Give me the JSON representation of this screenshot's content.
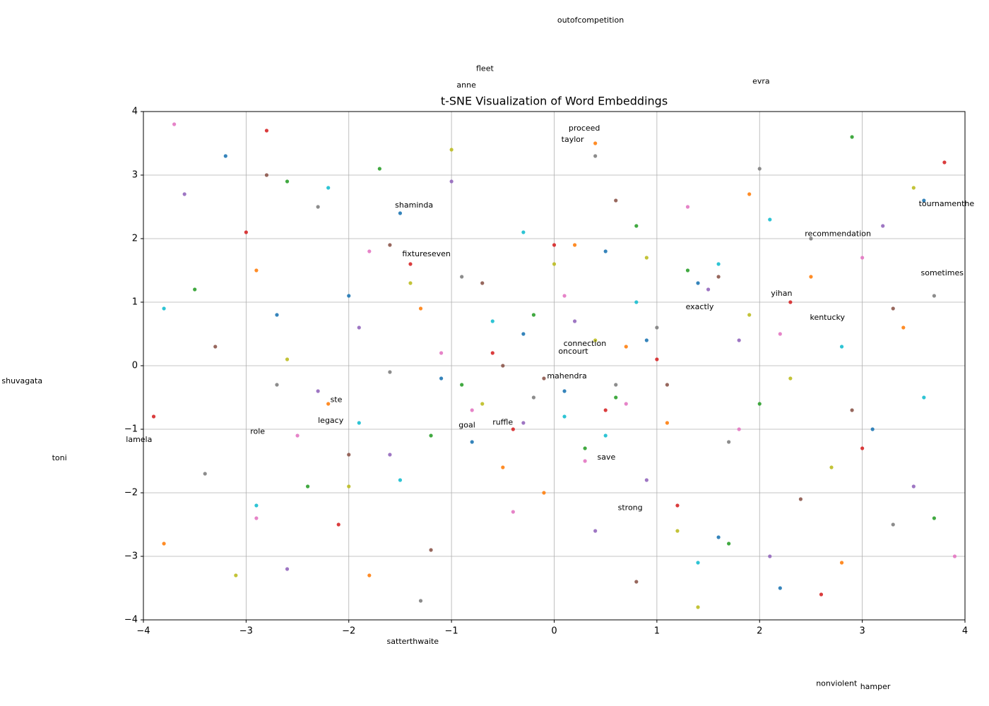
{
  "chart_data": {
    "type": "scatter",
    "title": "t-SNE Visualization of Word Embeddings",
    "xlim": [
      -4,
      4
    ],
    "ylim": [
      -4,
      4
    ],
    "xticks": [
      {
        "value": -4,
        "label": "−4"
      },
      {
        "value": -3,
        "label": "−3"
      },
      {
        "value": -2,
        "label": "−2"
      },
      {
        "value": -1,
        "label": "−1"
      },
      0,
      1,
      2,
      3,
      4
    ],
    "yticks": [
      {
        "value": -4,
        "label": "−4"
      },
      {
        "value": -3,
        "label": "−3"
      },
      {
        "value": -2,
        "label": "−2"
      },
      {
        "value": -1,
        "label": "−1"
      },
      0,
      1,
      2,
      3,
      4
    ],
    "grid": true,
    "series": [
      {
        "color": "#1f77b4",
        "x": [
          -3.2,
          -2.7,
          -1.5,
          -0.8,
          -0.3,
          0.1,
          0.5,
          1.4,
          2.2,
          3.1,
          -1.1,
          0.9,
          1.6,
          -2.0,
          3.6
        ],
        "values": [
          3.3,
          0.8,
          2.4,
          -1.2,
          0.5,
          -0.4,
          1.8,
          1.3,
          -3.5,
          -1.0,
          -0.2,
          0.4,
          -2.7,
          1.1,
          2.6
        ]
      },
      {
        "color": "#ff7f0e",
        "x": [
          -3.8,
          -2.9,
          -2.2,
          -1.3,
          -0.5,
          0.2,
          0.7,
          1.1,
          1.9,
          2.8,
          3.4,
          -0.1,
          0.4,
          -1.8,
          2.5
        ],
        "values": [
          -2.8,
          1.5,
          -0.6,
          0.9,
          -1.6,
          1.9,
          0.3,
          -0.9,
          2.7,
          -3.1,
          0.6,
          -2.0,
          3.5,
          -3.3,
          1.4
        ]
      },
      {
        "color": "#2ca02c",
        "x": [
          -3.5,
          -2.4,
          -1.7,
          -0.9,
          -0.2,
          0.3,
          0.8,
          1.3,
          2.0,
          2.9,
          3.7,
          -1.2,
          0.6,
          1.7,
          -2.6
        ],
        "values": [
          1.2,
          -1.9,
          3.1,
          -0.3,
          0.8,
          -1.3,
          2.2,
          1.5,
          -0.6,
          3.6,
          -2.4,
          -1.1,
          -0.5,
          -2.8,
          2.9
        ]
      },
      {
        "color": "#d62728",
        "x": [
          -3.9,
          -3.0,
          -2.1,
          -1.4,
          -0.6,
          0.0,
          0.5,
          1.2,
          2.3,
          3.0,
          3.8,
          -0.4,
          1.0,
          -2.8,
          2.6
        ],
        "values": [
          -0.8,
          2.1,
          -2.5,
          1.6,
          0.2,
          1.9,
          -0.7,
          -2.2,
          1.0,
          -1.3,
          3.2,
          -1.0,
          0.1,
          3.7,
          -3.6
        ]
      },
      {
        "color": "#9467bd",
        "x": [
          -3.6,
          -2.6,
          -1.9,
          -1.0,
          -0.3,
          0.2,
          0.9,
          1.5,
          2.1,
          3.2,
          -1.6,
          0.4,
          1.8,
          -2.3,
          3.5
        ],
        "values": [
          2.7,
          -3.2,
          0.6,
          2.9,
          -0.9,
          0.7,
          -1.8,
          1.2,
          -3.0,
          2.2,
          -1.4,
          -2.6,
          0.4,
          -0.4,
          -1.9
        ]
      },
      {
        "color": "#8c564b",
        "x": [
          -3.3,
          -2.8,
          -2.0,
          -1.2,
          -0.7,
          -0.1,
          0.6,
          1.1,
          1.6,
          2.4,
          3.3,
          -0.5,
          0.8,
          -1.6,
          2.9
        ],
        "values": [
          0.3,
          3.0,
          -1.4,
          -2.9,
          1.3,
          -0.2,
          2.6,
          -0.3,
          1.4,
          -2.1,
          0.9,
          0.0,
          -3.4,
          1.9,
          -0.7
        ]
      },
      {
        "color": "#e377c2",
        "x": [
          -3.7,
          -2.5,
          -1.8,
          -1.1,
          -0.4,
          0.1,
          0.7,
          1.3,
          2.2,
          3.0,
          3.9,
          -0.8,
          0.3,
          -2.9,
          1.8
        ],
        "values": [
          3.8,
          -1.1,
          1.8,
          0.2,
          -2.3,
          1.1,
          -0.6,
          2.5,
          0.5,
          1.7,
          -3.0,
          -0.7,
          -1.5,
          -2.4,
          -1.0
        ]
      },
      {
        "color": "#7f7f7f",
        "x": [
          -3.4,
          -2.3,
          -1.6,
          -0.9,
          -0.2,
          0.4,
          1.0,
          1.7,
          2.5,
          3.3,
          -1.3,
          0.6,
          2.0,
          -2.7,
          3.7
        ],
        "values": [
          -1.7,
          2.5,
          -0.1,
          1.4,
          -0.5,
          3.3,
          0.6,
          -1.2,
          2.0,
          -2.5,
          -3.7,
          -0.3,
          3.1,
          -0.3,
          1.1
        ]
      },
      {
        "color": "#bcbd22",
        "x": [
          -3.1,
          -2.6,
          -1.4,
          -0.7,
          0.0,
          0.4,
          1.2,
          1.9,
          2.7,
          3.5,
          -2.0,
          0.9,
          1.4,
          -1.0,
          2.3
        ],
        "values": [
          -3.3,
          0.1,
          1.3,
          -0.6,
          1.6,
          0.4,
          -2.6,
          0.8,
          -1.6,
          2.8,
          -1.9,
          1.7,
          -3.8,
          3.4,
          -0.2
        ]
      },
      {
        "color": "#17becf",
        "x": [
          -3.8,
          -2.9,
          -2.2,
          -1.5,
          -0.6,
          0.1,
          0.8,
          1.4,
          2.1,
          2.8,
          3.6,
          -0.3,
          0.5,
          -1.9,
          1.6
        ],
        "values": [
          0.9,
          -2.2,
          2.8,
          -1.8,
          0.7,
          -0.8,
          1.0,
          -3.1,
          2.3,
          0.3,
          -0.5,
          2.1,
          -1.1,
          -0.9,
          1.6
        ]
      }
    ],
    "annotations": [
      {
        "text": "outofcompetition",
        "x": 0.03,
        "y": 5.4
      },
      {
        "text": "fleet",
        "x": -0.76,
        "y": 4.64
      },
      {
        "text": "anne",
        "x": -0.95,
        "y": 4.38
      },
      {
        "text": "evra",
        "x": 1.93,
        "y": 4.44
      },
      {
        "text": "proceed",
        "x": 0.14,
        "y": 3.7
      },
      {
        "text": "taylor",
        "x": 0.07,
        "y": 3.52
      },
      {
        "text": "shaminda",
        "x": -1.55,
        "y": 2.49
      },
      {
        "text": "tournamenthe",
        "x": 3.55,
        "y": 2.51
      },
      {
        "text": "recommendation",
        "x": 2.44,
        "y": 2.04
      },
      {
        "text": "fixtureseven",
        "x": -1.48,
        "y": 1.72
      },
      {
        "text": "sometimes",
        "x": 3.57,
        "y": 1.42
      },
      {
        "text": "yihan",
        "x": 2.11,
        "y": 1.1
      },
      {
        "text": "exactly",
        "x": 1.28,
        "y": 0.89
      },
      {
        "text": "kentucky",
        "x": 2.49,
        "y": 0.72
      },
      {
        "text": "connection",
        "x": 0.09,
        "y": 0.31
      },
      {
        "text": "oncourt",
        "x": 0.04,
        "y": 0.19
      },
      {
        "text": "shuvagata",
        "x": -5.38,
        "y": -0.28
      },
      {
        "text": "mahendra",
        "x": -0.07,
        "y": -0.2
      },
      {
        "text": "ste",
        "x": -2.18,
        "y": -0.57
      },
      {
        "text": "legacy",
        "x": -2.3,
        "y": -0.9
      },
      {
        "text": "goal",
        "x": -0.93,
        "y": -0.97
      },
      {
        "text": "ruffle",
        "x": -0.6,
        "y": -0.93
      },
      {
        "text": "role",
        "x": -2.96,
        "y": -1.07
      },
      {
        "text": "lamela",
        "x": -4.17,
        "y": -1.2
      },
      {
        "text": "toni",
        "x": -4.89,
        "y": -1.49
      },
      {
        "text": "save",
        "x": 0.42,
        "y": -1.48
      },
      {
        "text": "strong",
        "x": 0.62,
        "y": -2.27
      },
      {
        "text": "satterthwaite",
        "x": -1.63,
        "y": -4.38
      },
      {
        "text": "nonviolent",
        "x": 2.55,
        "y": -5.04
      },
      {
        "text": "hamper",
        "x": 2.98,
        "y": -5.09
      }
    ]
  }
}
